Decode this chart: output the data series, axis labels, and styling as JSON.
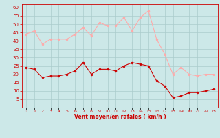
{
  "hours": [
    0,
    1,
    2,
    3,
    4,
    5,
    6,
    7,
    8,
    9,
    10,
    11,
    12,
    13,
    14,
    15,
    16,
    17,
    18,
    19,
    20,
    21,
    22,
    23
  ],
  "wind_avg": [
    24,
    23,
    18,
    19,
    19,
    20,
    22,
    27,
    20,
    23,
    23,
    22,
    25,
    27,
    26,
    25,
    16,
    13,
    6,
    7,
    9,
    9,
    10,
    11
  ],
  "wind_gust": [
    44,
    46,
    38,
    41,
    41,
    41,
    44,
    48,
    43,
    51,
    49,
    49,
    54,
    46,
    54,
    58,
    41,
    32,
    20,
    24,
    20,
    19,
    20,
    20
  ],
  "bg_color": "#cce8e8",
  "grid_color": "#aacccc",
  "line_avg_color": "#cc0000",
  "line_gust_color": "#ffaaaa",
  "xlabel": "Vent moyen/en rafales ( km/h )",
  "xlabel_color": "#cc0000",
  "tick_color": "#cc0000",
  "ylim": [
    0,
    62
  ],
  "yticks": [
    5,
    10,
    15,
    20,
    25,
    30,
    35,
    40,
    45,
    50,
    55,
    60
  ],
  "marker_size": 2.0,
  "line_width": 0.8
}
